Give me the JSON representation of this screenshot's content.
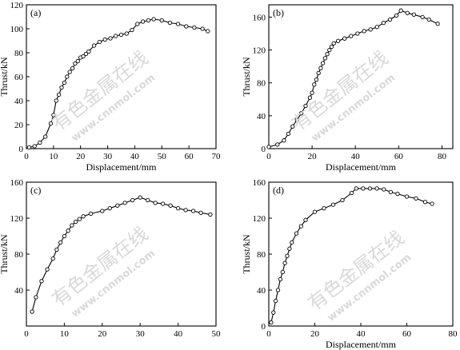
{
  "watermark": {
    "text": "有色金属在线",
    "url": "www.cnnmol.com"
  },
  "chart_data": [
    {
      "type": "line",
      "panel_label": "(a)",
      "xlabel": "Displacement/mm",
      "ylabel": "Thrust/kN",
      "xlim": [
        0,
        70
      ],
      "ylim": [
        0,
        120
      ],
      "xticks": [
        0,
        10,
        20,
        30,
        40,
        50,
        60,
        70
      ],
      "yticks": [
        0,
        20,
        40,
        60,
        80,
        100,
        120
      ],
      "series": [
        {
          "x": [
            1,
            3,
            5,
            7,
            9,
            10,
            11,
            12,
            13,
            14,
            15,
            16,
            17,
            18,
            19,
            20,
            21,
            22,
            23,
            25,
            27,
            29,
            31,
            33,
            35,
            37,
            39,
            41,
            43,
            45,
            47,
            50,
            53,
            56,
            59,
            62,
            65,
            67
          ],
          "y": [
            1,
            2,
            5,
            10,
            21,
            28,
            40,
            45,
            51,
            55,
            60,
            64,
            67,
            71,
            73,
            76,
            77,
            79,
            81,
            86,
            89,
            91,
            92,
            94,
            95,
            96,
            99,
            104,
            106,
            107,
            108,
            107,
            105,
            104,
            102,
            101,
            100,
            98
          ]
        }
      ]
    },
    {
      "type": "line",
      "panel_label": "(b)",
      "xlabel": "Displacement/mm",
      "ylabel": "Thrust/kN",
      "xlim": [
        0,
        85
      ],
      "ylim": [
        0,
        175
      ],
      "xticks": [
        0,
        20,
        40,
        60,
        80
      ],
      "yticks": [
        0,
        40,
        80,
        120,
        160
      ],
      "series": [
        {
          "x": [
            0,
            4,
            7,
            9,
            11,
            13,
            15,
            17,
            19,
            20,
            21,
            22,
            23,
            24,
            25,
            26,
            27,
            28,
            29,
            30,
            32,
            35,
            38,
            41,
            44,
            47,
            50,
            53,
            56,
            59,
            61,
            64,
            67,
            71,
            74,
            78
          ],
          "y": [
            2,
            5,
            10,
            18,
            27,
            35,
            43,
            52,
            62,
            68,
            78,
            84,
            92,
            98,
            104,
            110,
            115,
            120,
            124,
            128,
            131,
            134,
            137,
            140,
            143,
            145,
            148,
            153,
            157,
            162,
            168,
            165,
            163,
            160,
            157,
            152
          ]
        }
      ]
    },
    {
      "type": "line",
      "panel_label": "(c)",
      "xlabel": "",
      "ylabel": "Thrust/kN",
      "xlim": [
        0,
        50
      ],
      "ylim": [
        0,
        160
      ],
      "xticks": [
        0,
        10,
        20,
        30,
        40,
        50
      ],
      "yticks": [
        40,
        80,
        120,
        160
      ],
      "series": [
        {
          "x": [
            1.5,
            2.5,
            4,
            5.5,
            7,
            8,
            9,
            10,
            11,
            12,
            13,
            14,
            15,
            17,
            20,
            22,
            24,
            26,
            28,
            30,
            32,
            34,
            36,
            38,
            40,
            42,
            44,
            46,
            48.5
          ],
          "y": [
            16,
            32,
            50,
            63,
            75,
            85,
            93,
            100,
            106,
            112,
            116,
            119,
            122,
            125,
            128,
            131,
            134,
            137,
            140,
            143,
            140,
            137,
            136,
            134,
            131,
            129,
            128,
            126,
            124
          ]
        }
      ]
    },
    {
      "type": "line",
      "panel_label": "(d)",
      "xlabel": "Displacement/mm",
      "ylabel": "Thrust/kN",
      "xlim": [
        0,
        80
      ],
      "ylim": [
        0,
        160
      ],
      "xticks": [
        0,
        20,
        40,
        60,
        80
      ],
      "yticks": [
        0,
        40,
        80,
        120,
        160
      ],
      "series": [
        {
          "x": [
            1,
            2,
            3,
            4,
            5,
            6,
            7,
            8,
            9,
            10,
            12,
            14,
            16,
            20,
            24,
            28,
            32,
            36,
            38,
            41,
            44,
            47,
            50,
            53,
            56,
            60,
            64,
            68,
            71
          ],
          "y": [
            4,
            15,
            28,
            40,
            52,
            60,
            70,
            78,
            86,
            93,
            103,
            111,
            118,
            127,
            131,
            135,
            140,
            148,
            153,
            153,
            153,
            153,
            152,
            149,
            147,
            144,
            142,
            138,
            136
          ]
        }
      ]
    }
  ]
}
